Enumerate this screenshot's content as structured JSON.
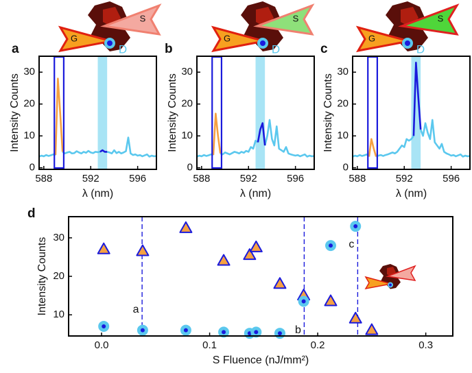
{
  "chart_data": [
    {
      "type": "line",
      "panel_label": "a",
      "inset_labels": [
        "G",
        "S",
        "D"
      ],
      "x_label": "λ (nm)",
      "y_label": "Intensity Counts",
      "x": [
        587.6,
        587.8,
        588,
        588.2,
        588.4,
        588.6,
        588.8,
        589,
        589.2,
        589.4,
        589.6,
        589.8,
        590,
        590.2,
        590.4,
        590.6,
        590.8,
        591,
        591.2,
        591.4,
        591.6,
        591.8,
        592,
        592.2,
        592.4,
        592.6,
        592.8,
        593,
        593.2,
        593.4,
        593.6,
        593.8,
        594,
        594.2,
        594.4,
        594.6,
        594.8,
        595,
        595.2,
        595.4,
        595.6,
        595.8,
        596,
        596.2,
        596.4,
        596.6,
        596.8,
        597,
        597.2,
        597.4,
        597.6
      ],
      "series": [
        {
          "color": "#5bc8ee",
          "values": [
            3.5,
            3.8,
            3.6,
            4,
            3.7,
            3.9,
            4.2,
            4,
            null,
            null,
            5,
            4.5,
            4.8,
            5,
            4.5,
            4.6,
            5.2,
            4.8,
            4.5,
            5,
            4.7,
            5.3,
            4.8,
            4.6,
            5,
            4.9,
            5,
            null,
            null,
            5,
            4.8,
            4.5,
            5.5,
            4.6,
            5,
            4.5,
            4.8,
            5.2,
            9.5,
            4.5,
            4,
            4.2,
            3.8,
            4,
            3.6,
            3.9,
            4.2,
            3.5,
            3.8,
            3.6,
            3.7
          ]
        },
        {
          "color": "#f5a142",
          "values": [
            null,
            null,
            null,
            null,
            null,
            null,
            null,
            4,
            28,
            17,
            5,
            null,
            null,
            null,
            null,
            null,
            null,
            null,
            null,
            null,
            null,
            null,
            null,
            null,
            null,
            null,
            null,
            null,
            null,
            null,
            null,
            null,
            null,
            null,
            null,
            null,
            null,
            null,
            null,
            null,
            null,
            null,
            null,
            null,
            null,
            null,
            null,
            null,
            null,
            null,
            null
          ]
        },
        {
          "color": "#1a1adc",
          "values": [
            null,
            null,
            null,
            null,
            null,
            null,
            null,
            null,
            null,
            null,
            null,
            null,
            null,
            null,
            null,
            null,
            null,
            null,
            null,
            null,
            null,
            null,
            null,
            null,
            null,
            null,
            5,
            5.5,
            5,
            5,
            null,
            null,
            null,
            null,
            null,
            null,
            null,
            null,
            null,
            null,
            null,
            null,
            null,
            null,
            null,
            null,
            null,
            null,
            null,
            null,
            null
          ]
        }
      ],
      "box_x": [
        588.9,
        589.7
      ],
      "box_color": "#1a1adc",
      "band_x": [
        592.6,
        593.4
      ],
      "band_color": "#a8e4f5",
      "xlim": [
        587.6,
        597.6
      ],
      "ylim": [
        -0.5,
        35
      ],
      "xticks": [
        588,
        592,
        596
      ],
      "yticks": [
        0,
        10,
        20,
        30
      ]
    },
    {
      "type": "line",
      "panel_label": "b",
      "inset_labels": [
        "G",
        "S",
        "D"
      ],
      "x_label": "λ (nm)",
      "y_label": "Intensity Counts",
      "x": [
        587.6,
        587.8,
        588,
        588.2,
        588.4,
        588.6,
        588.8,
        589,
        589.2,
        589.4,
        589.6,
        589.8,
        590,
        590.2,
        590.4,
        590.6,
        590.8,
        591,
        591.2,
        591.4,
        591.6,
        591.8,
        592,
        592.2,
        592.4,
        592.6,
        592.8,
        593,
        593.2,
        593.4,
        593.6,
        593.8,
        594,
        594.2,
        594.4,
        594.6,
        594.8,
        595,
        595.2,
        595.4,
        595.6,
        595.8,
        596,
        596.2,
        596.4,
        596.6,
        596.8,
        597,
        597.2,
        597.4,
        597.6
      ],
      "series": [
        {
          "color": "#5bc8ee",
          "values": [
            3.5,
            3.8,
            3.6,
            4,
            3.7,
            3.9,
            4.2,
            4,
            null,
            null,
            4.5,
            4.2,
            4.8,
            4.5,
            4.2,
            4.6,
            5,
            4.8,
            4.5,
            5,
            4.7,
            5.3,
            5,
            6.5,
            6,
            8.5,
            8,
            null,
            null,
            7,
            10,
            15,
            9,
            7,
            13,
            6,
            5.5,
            5,
            6.5,
            4.5,
            4.2,
            4,
            3.8,
            4,
            3.6,
            3.9,
            4.2,
            3.5,
            3.8,
            3.6,
            3.7
          ]
        },
        {
          "color": "#f5a142",
          "values": [
            null,
            null,
            null,
            null,
            null,
            null,
            null,
            4,
            17,
            10,
            4.5,
            null,
            null,
            null,
            null,
            null,
            null,
            null,
            null,
            null,
            null,
            null,
            null,
            null,
            null,
            null,
            null,
            null,
            null,
            null,
            null,
            null,
            null,
            null,
            null,
            null,
            null,
            null,
            null,
            null,
            null,
            null,
            null,
            null,
            null,
            null,
            null,
            null,
            null,
            null,
            null
          ]
        },
        {
          "color": "#1a1adc",
          "values": [
            null,
            null,
            null,
            null,
            null,
            null,
            null,
            null,
            null,
            null,
            null,
            null,
            null,
            null,
            null,
            null,
            null,
            null,
            null,
            null,
            null,
            null,
            null,
            null,
            null,
            null,
            8,
            12,
            14,
            7,
            null,
            null,
            null,
            null,
            null,
            null,
            null,
            null,
            null,
            null,
            null,
            null,
            null,
            null,
            null,
            null,
            null,
            null,
            null,
            null,
            null
          ]
        }
      ],
      "box_x": [
        588.9,
        589.7
      ],
      "box_color": "#1a1adc",
      "band_x": [
        592.6,
        593.4
      ],
      "band_color": "#a8e4f5",
      "xlim": [
        587.6,
        597.6
      ],
      "ylim": [
        -0.5,
        35
      ],
      "xticks": [
        588,
        592,
        596
      ],
      "yticks": [
        0,
        10,
        20,
        30
      ]
    },
    {
      "type": "line",
      "panel_label": "c",
      "inset_labels": [
        "G",
        "S",
        "D"
      ],
      "x_label": "λ (nm)",
      "y_label": "Intensity Counts",
      "x": [
        587.6,
        587.8,
        588,
        588.2,
        588.4,
        588.6,
        588.8,
        589,
        589.2,
        589.4,
        589.6,
        589.8,
        590,
        590.2,
        590.4,
        590.6,
        590.8,
        591,
        591.2,
        591.4,
        591.6,
        591.8,
        592,
        592.2,
        592.4,
        592.6,
        592.8,
        593,
        593.2,
        593.4,
        593.6,
        593.8,
        594,
        594.2,
        594.4,
        594.6,
        594.8,
        595,
        595.2,
        595.4,
        595.6,
        595.8,
        596,
        596.2,
        596.4,
        596.6,
        596.8,
        597,
        597.2,
        597.4,
        597.6
      ],
      "series": [
        {
          "color": "#5bc8ee",
          "values": [
            3.5,
            3.8,
            3.6,
            4,
            3.7,
            3.9,
            4.2,
            3.5,
            null,
            null,
            3.5,
            3.8,
            4,
            3.7,
            4,
            4.2,
            4.5,
            4.8,
            4.5,
            5,
            6,
            7,
            6.5,
            9,
            8.5,
            9,
            10,
            null,
            null,
            12,
            10,
            14,
            11,
            9,
            15,
            8,
            7,
            6,
            7.5,
            5,
            4.5,
            4.2,
            3.8,
            4,
            3.6,
            3.9,
            4.2,
            3.5,
            3.8,
            3.6,
            3.7
          ]
        },
        {
          "color": "#f5a142",
          "values": [
            null,
            null,
            null,
            null,
            null,
            null,
            null,
            3.5,
            9,
            6,
            3.5,
            null,
            null,
            null,
            null,
            null,
            null,
            null,
            null,
            null,
            null,
            null,
            null,
            null,
            null,
            null,
            null,
            null,
            null,
            null,
            null,
            null,
            null,
            null,
            null,
            null,
            null,
            null,
            null,
            null,
            null,
            null,
            null,
            null,
            null,
            null,
            null,
            null,
            null,
            null,
            null
          ]
        },
        {
          "color": "#1a1adc",
          "values": [
            null,
            null,
            null,
            null,
            null,
            null,
            null,
            null,
            null,
            null,
            null,
            null,
            null,
            null,
            null,
            null,
            null,
            null,
            null,
            null,
            null,
            null,
            null,
            null,
            null,
            null,
            10,
            33,
            22,
            12,
            null,
            null,
            null,
            null,
            null,
            null,
            null,
            null,
            null,
            null,
            null,
            null,
            null,
            null,
            null,
            null,
            null,
            null,
            null,
            null,
            null
          ]
        }
      ],
      "box_x": [
        588.9,
        589.7
      ],
      "box_color": "#1a1adc",
      "band_x": [
        592.6,
        593.4
      ],
      "band_color": "#a8e4f5",
      "xlim": [
        587.6,
        597.6
      ],
      "ylim": [
        -0.5,
        35
      ],
      "xticks": [
        588,
        592,
        596
      ],
      "yticks": [
        0,
        10,
        20,
        30
      ]
    },
    {
      "type": "scatter",
      "panel_label": "d",
      "x_label": "S Fluence (nJ/mm²)",
      "y_label": "Intensity  Counts",
      "series": [
        {
          "marker": "triangle",
          "color": "#f5a142",
          "edge_color": "#1a1adc",
          "x": [
            0.002,
            0.038,
            0.078,
            0.113,
            0.137,
            0.143,
            0.165,
            0.187,
            0.212,
            0.235,
            0.25
          ],
          "values": [
            27,
            26.5,
            32.5,
            24,
            25.5,
            27.5,
            18,
            15,
            13.5,
            9,
            6
          ]
        },
        {
          "marker": "circle",
          "color": "#1a1adc",
          "edge_color": "#5bc8ee",
          "x": [
            0.002,
            0.038,
            0.078,
            0.113,
            0.137,
            0.143,
            0.165,
            0.187,
            0.212,
            0.235
          ],
          "values": [
            7,
            6,
            6,
            5.5,
            5.2,
            5.5,
            5.2,
            13.5,
            28,
            33
          ]
        }
      ],
      "annotations": [
        {
          "x": 0.0375,
          "label": "a"
        },
        {
          "x": 0.1875,
          "label": "b"
        },
        {
          "x": 0.237,
          "label": "c"
        }
      ],
      "annotation_color": "#1a1adc",
      "xlim": [
        -0.0305,
        0.325
      ],
      "ylim": [
        4.5,
        35.5
      ],
      "xticks": [
        {
          "value": 0,
          "label": "0.0"
        },
        0.1,
        0.2,
        0.3
      ],
      "yticks": [
        10,
        20,
        30
      ]
    }
  ]
}
